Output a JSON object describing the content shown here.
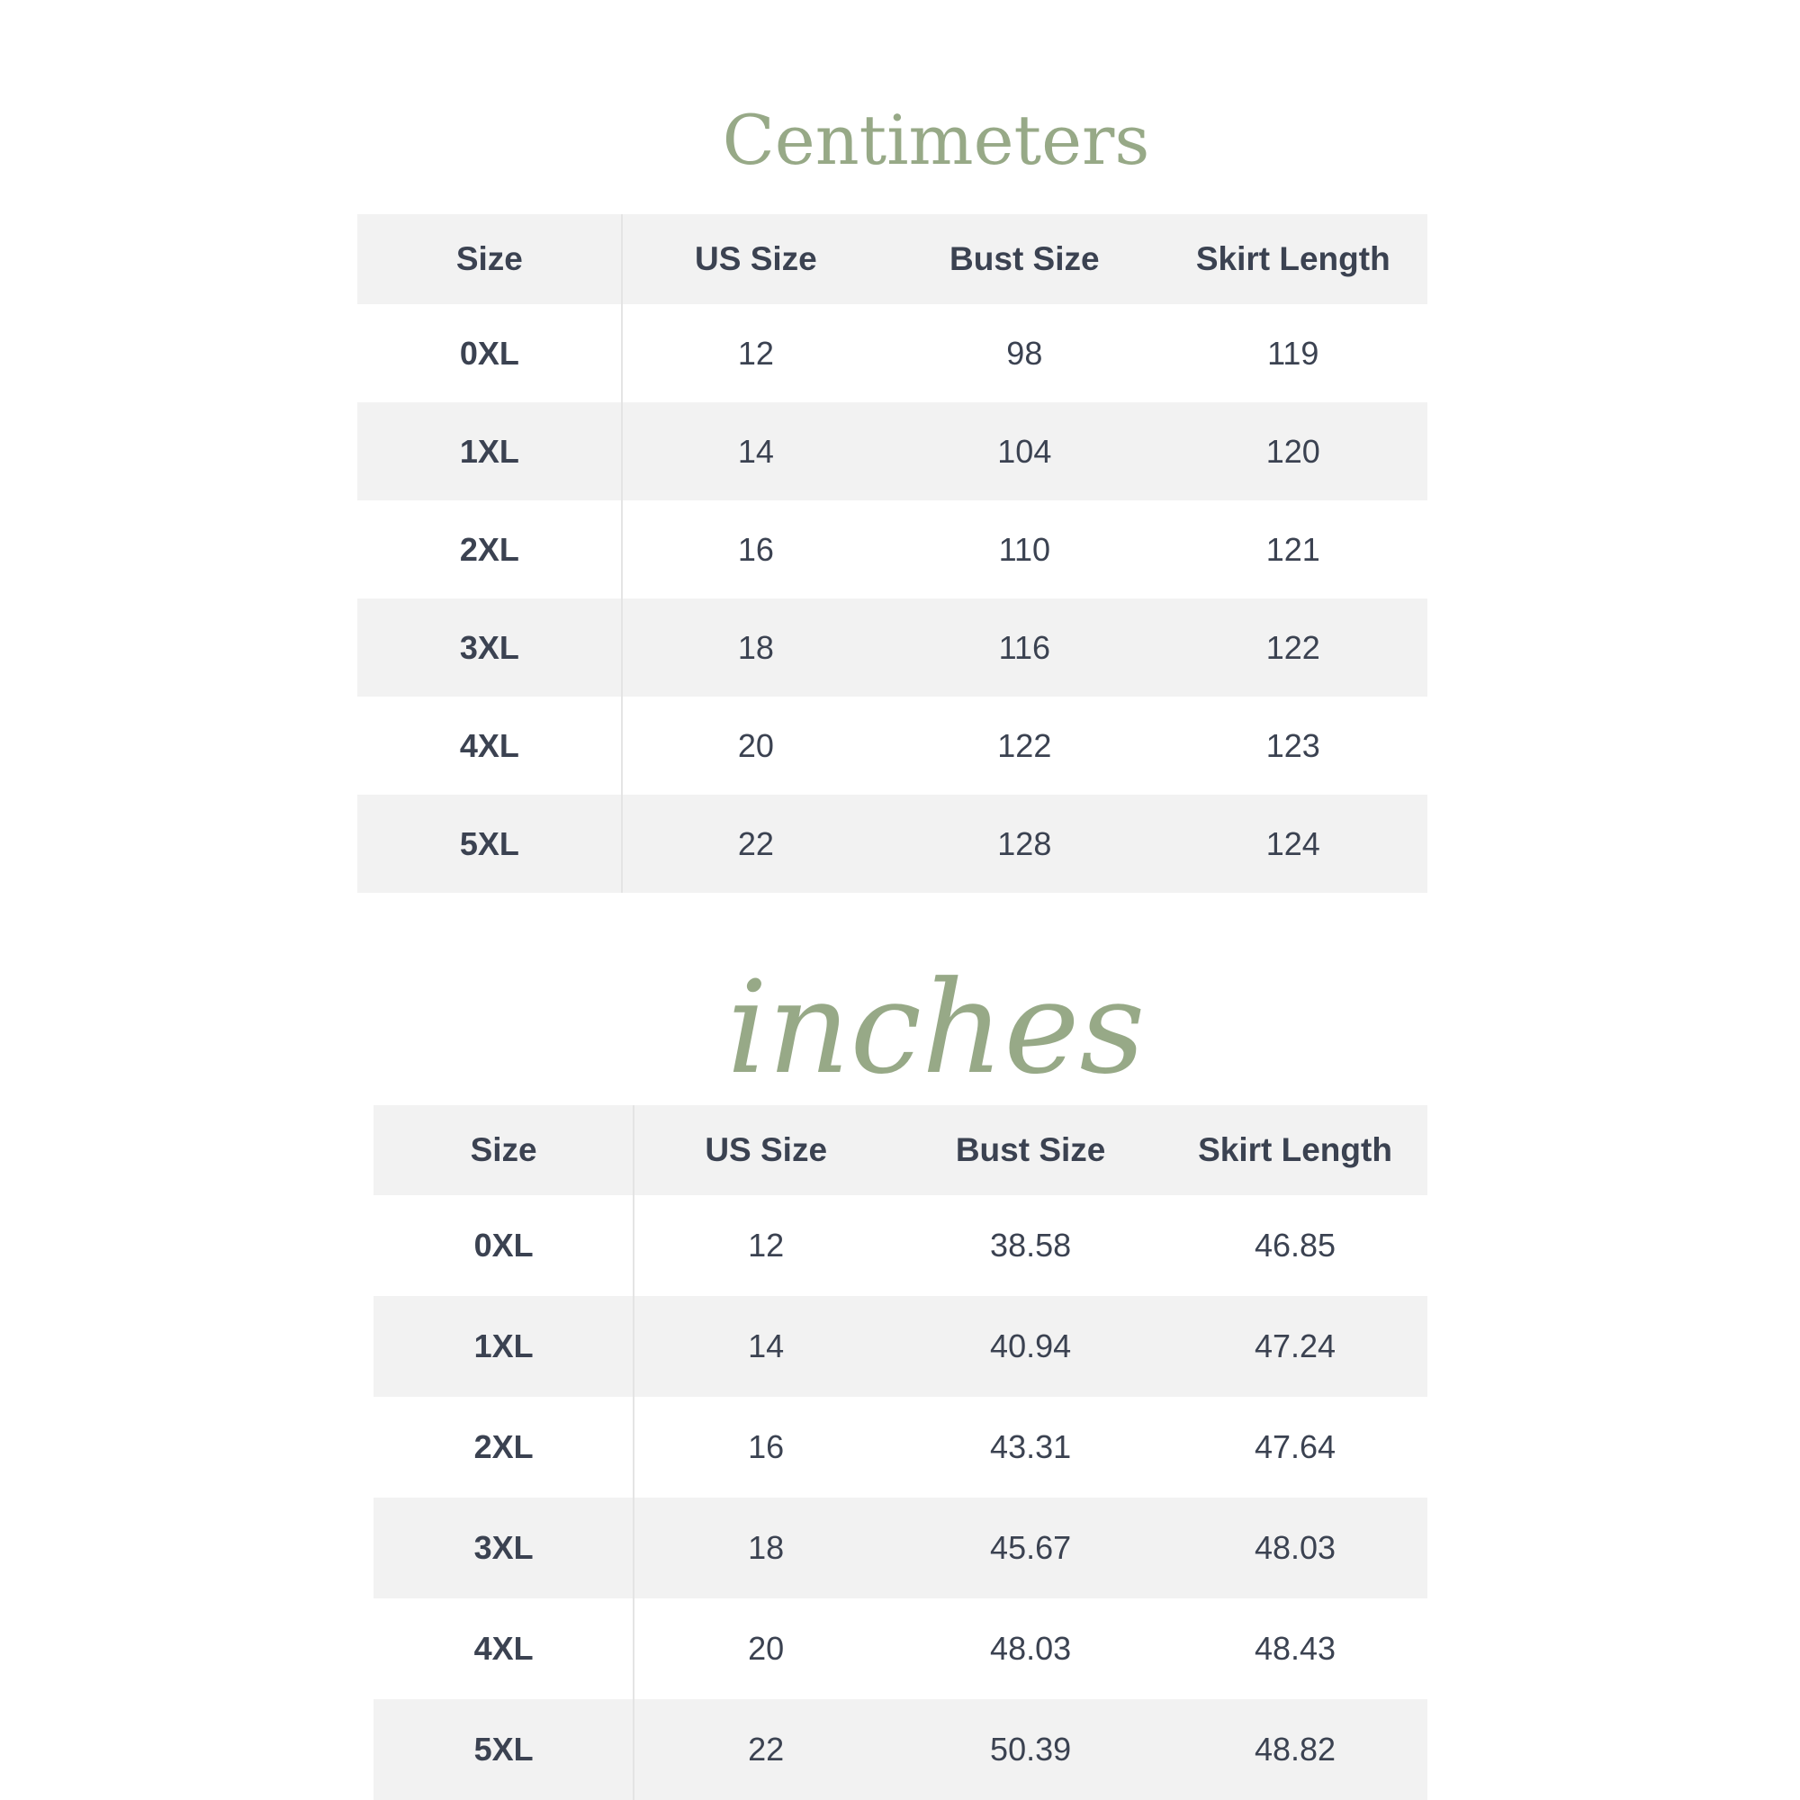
{
  "colors": {
    "accent_green": "#97a987",
    "text_dark": "#3b4251",
    "stripe_gray": "#f2f2f2",
    "divider_gray": "#e4e4e4",
    "background": "#ffffff"
  },
  "cm_table": {
    "title": "Centimeters",
    "columns": [
      "Size",
      "US Size",
      "Bust Size",
      "Skirt Length"
    ],
    "rows": [
      [
        "0XL",
        "12",
        "98",
        "119"
      ],
      [
        "1XL",
        "14",
        "104",
        "120"
      ],
      [
        "2XL",
        "16",
        "110",
        "121"
      ],
      [
        "3XL",
        "18",
        "116",
        "122"
      ],
      [
        "4XL",
        "20",
        "122",
        "123"
      ],
      [
        "5XL",
        "22",
        "128",
        "124"
      ]
    ]
  },
  "inch_table": {
    "title": "inches",
    "columns": [
      "Size",
      "US Size",
      "Bust Size",
      "Skirt Length"
    ],
    "rows": [
      [
        "0XL",
        "12",
        "38.58",
        "46.85"
      ],
      [
        "1XL",
        "14",
        "40.94",
        "47.24"
      ],
      [
        "2XL",
        "16",
        "43.31",
        "47.64"
      ],
      [
        "3XL",
        "18",
        "45.67",
        "48.03"
      ],
      [
        "4XL",
        "20",
        "48.03",
        "48.43"
      ],
      [
        "5XL",
        "22",
        "50.39",
        "48.82"
      ]
    ]
  }
}
